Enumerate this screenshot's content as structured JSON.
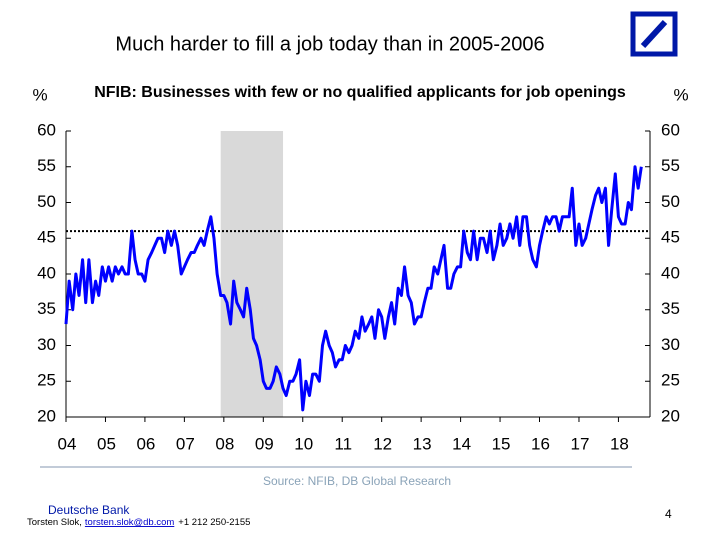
{
  "title": "Much harder to fill a job today than in 2005-2006",
  "chart_data": {
    "type": "line",
    "title": "NFIB: Businesses with few or no qualified applicants for job openings",
    "y_label": "%",
    "y2_label": "%",
    "color": "#0000ff",
    "xlim": [
      2004,
      2018.8
    ],
    "ylim": [
      20,
      60
    ],
    "y2lim": [
      20,
      60
    ],
    "yticks": [
      20,
      25,
      30,
      35,
      40,
      45,
      50,
      55,
      60
    ],
    "y2ticks": [
      20,
      25,
      30,
      35,
      40,
      45,
      50,
      55,
      60
    ],
    "xticks": [
      {
        "value": 2004,
        "label": "04"
      },
      {
        "value": 2005,
        "label": "05"
      },
      {
        "value": 2006,
        "label": "06"
      },
      {
        "value": 2007,
        "label": "07"
      },
      {
        "value": 2008,
        "label": "08"
      },
      {
        "value": 2009,
        "label": "09"
      },
      {
        "value": 2010,
        "label": "10"
      },
      {
        "value": 2011,
        "label": "11"
      },
      {
        "value": 2012,
        "label": "12"
      },
      {
        "value": 2013,
        "label": "13"
      },
      {
        "value": 2014,
        "label": "14"
      },
      {
        "value": 2015,
        "label": "15"
      },
      {
        "value": 2016,
        "label": "16"
      },
      {
        "value": 2017,
        "label": "17"
      },
      {
        "value": 2018,
        "label": "18"
      }
    ],
    "shaded_span": [
      2007.92,
      2009.5
    ],
    "shade_color": "#d9d9d9",
    "reference_line": 46,
    "x": [
      2004,
      2004.08,
      2004.17,
      2004.25,
      2004.33,
      2004.42,
      2004.5,
      2004.58,
      2004.67,
      2004.75,
      2004.83,
      2004.92,
      2005,
      2005.08,
      2005.17,
      2005.25,
      2005.33,
      2005.42,
      2005.5,
      2005.58,
      2005.67,
      2005.75,
      2005.83,
      2005.92,
      2006,
      2006.08,
      2006.17,
      2006.25,
      2006.33,
      2006.42,
      2006.5,
      2006.58,
      2006.67,
      2006.75,
      2006.83,
      2006.92,
      2007,
      2007.08,
      2007.17,
      2007.25,
      2007.33,
      2007.42,
      2007.5,
      2007.58,
      2007.67,
      2007.75,
      2007.83,
      2007.92,
      2008,
      2008.08,
      2008.17,
      2008.25,
      2008.33,
      2008.42,
      2008.5,
      2008.58,
      2008.67,
      2008.75,
      2008.83,
      2008.92,
      2009,
      2009.08,
      2009.17,
      2009.25,
      2009.33,
      2009.42,
      2009.5,
      2009.58,
      2009.67,
      2009.75,
      2009.83,
      2009.92,
      2010,
      2010.08,
      2010.17,
      2010.25,
      2010.33,
      2010.42,
      2010.5,
      2010.58,
      2010.67,
      2010.75,
      2010.83,
      2010.92,
      2011,
      2011.08,
      2011.17,
      2011.25,
      2011.33,
      2011.42,
      2011.5,
      2011.58,
      2011.67,
      2011.75,
      2011.83,
      2011.92,
      2012,
      2012.08,
      2012.17,
      2012.25,
      2012.33,
      2012.42,
      2012.5,
      2012.58,
      2012.67,
      2012.75,
      2012.83,
      2012.92,
      2013,
      2013.08,
      2013.17,
      2013.25,
      2013.33,
      2013.42,
      2013.5,
      2013.58,
      2013.67,
      2013.75,
      2013.83,
      2013.92,
      2014,
      2014.08,
      2014.17,
      2014.25,
      2014.33,
      2014.42,
      2014.5,
      2014.58,
      2014.67,
      2014.75,
      2014.83,
      2014.92,
      2015,
      2015.08,
      2015.17,
      2015.25,
      2015.33,
      2015.42,
      2015.5,
      2015.58,
      2015.67,
      2015.75,
      2015.83,
      2015.92,
      2016,
      2016.08,
      2016.17,
      2016.25,
      2016.33,
      2016.42,
      2016.5,
      2016.58,
      2016.67,
      2016.75,
      2016.83,
      2016.92,
      2017,
      2017.08,
      2017.17,
      2017.25,
      2017.33,
      2017.42,
      2017.5,
      2017.58,
      2017.67,
      2017.75,
      2017.83,
      2017.92,
      2018,
      2018.08,
      2018.17,
      2018.25,
      2018.33,
      2018.42,
      2018.5,
      2018.58
    ],
    "values": [
      33,
      39,
      35,
      40,
      37,
      42,
      36,
      42,
      36,
      39,
      37,
      41,
      39,
      41,
      39,
      41,
      40,
      41,
      40,
      40,
      46,
      42,
      40,
      40,
      39,
      42,
      43,
      44,
      45,
      45,
      43,
      46,
      44,
      46,
      44,
      40,
      41,
      42,
      43,
      43,
      44,
      45,
      44,
      46,
      48,
      45,
      40,
      37,
      37,
      36,
      33,
      39,
      36,
      35,
      34,
      38,
      35,
      31,
      30,
      28,
      25,
      24,
      24,
      25,
      27,
      26,
      24,
      23,
      25,
      25,
      26,
      28,
      21,
      25,
      23,
      26,
      26,
      25,
      30,
      32,
      30,
      29,
      27,
      28,
      28,
      30,
      29,
      30,
      32,
      31,
      34,
      32,
      33,
      34,
      31,
      35,
      34,
      31,
      34,
      36,
      33,
      38,
      37,
      41,
      37,
      36,
      33,
      34,
      34,
      36,
      38,
      38,
      41,
      40,
      42,
      44,
      38,
      38,
      40,
      41,
      41,
      46,
      43,
      42,
      46,
      42,
      45,
      45,
      43,
      46,
      42,
      44,
      47,
      44,
      45,
      47,
      45,
      48,
      44,
      48,
      48,
      44,
      42,
      41,
      44,
      46,
      48,
      47,
      48,
      48,
      46,
      48,
      48,
      48,
      52,
      44,
      47,
      44,
      45,
      47,
      49,
      51,
      52,
      50,
      52,
      44,
      49,
      54,
      48,
      47,
      47,
      50,
      49,
      55,
      52,
      55
    ],
    "source": "Source: NFIB, DB Global Research"
  },
  "footer": {
    "company": "Deutsche Bank",
    "author": "Torsten Slok,",
    "email": "torsten.slok@db.com",
    "phone": "+1 212 250-2155",
    "page": "4"
  }
}
